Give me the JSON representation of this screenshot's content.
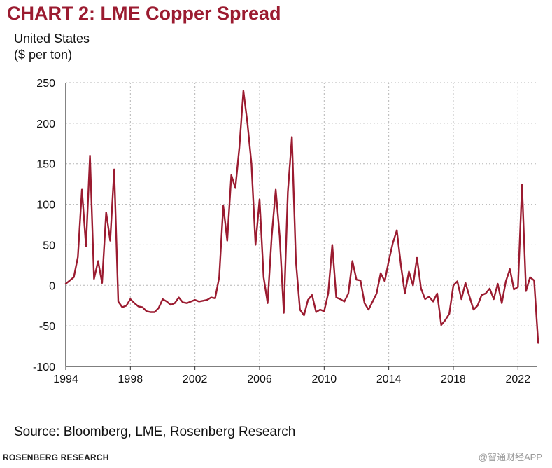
{
  "title": "CHART 2: LME Copper Spread",
  "subtitle_line1": "United States",
  "subtitle_line2": "($ per ton)",
  "source": "Source: Bloomberg, LME, Rosenberg Research",
  "footer": "ROSENBERG RESEARCH",
  "watermark": "@智通财经APP",
  "line_color": "#9b1b30",
  "chart_data": {
    "type": "line",
    "title": "CHART 2: LME Copper Spread",
    "xlabel": "",
    "ylabel": "($ per ton)",
    "xlim": [
      1994,
      2023.2
    ],
    "ylim": [
      -100,
      250
    ],
    "yticks": [
      250,
      200,
      150,
      100,
      50,
      0,
      -50,
      -100
    ],
    "xticks": [
      1994,
      1998,
      2002,
      2006,
      2010,
      2014,
      2018,
      2022
    ],
    "grid": true,
    "series": [
      {
        "name": "LME Copper Spread",
        "x": [
          1994.0,
          1994.25,
          1994.5,
          1994.75,
          1995.0,
          1995.25,
          1995.5,
          1995.75,
          1996.0,
          1996.25,
          1996.5,
          1996.75,
          1997.0,
          1997.25,
          1997.5,
          1997.75,
          1998.0,
          1998.25,
          1998.5,
          1998.75,
          1999.0,
          1999.25,
          1999.5,
          1999.75,
          2000.0,
          2000.25,
          2000.5,
          2000.75,
          2001.0,
          2001.25,
          2001.5,
          2001.75,
          2002.0,
          2002.25,
          2002.5,
          2002.75,
          2003.0,
          2003.25,
          2003.5,
          2003.75,
          2004.0,
          2004.25,
          2004.5,
          2004.75,
          2005.0,
          2005.25,
          2005.5,
          2005.75,
          2006.0,
          2006.25,
          2006.5,
          2006.75,
          2007.0,
          2007.25,
          2007.5,
          2007.75,
          2008.0,
          2008.25,
          2008.5,
          2008.75,
          2009.0,
          2009.25,
          2009.5,
          2009.75,
          2010.0,
          2010.25,
          2010.5,
          2010.75,
          2011.0,
          2011.25,
          2011.5,
          2011.75,
          2012.0,
          2012.25,
          2012.5,
          2012.75,
          2013.0,
          2013.25,
          2013.5,
          2013.75,
          2014.0,
          2014.25,
          2014.5,
          2014.75,
          2015.0,
          2015.25,
          2015.5,
          2015.75,
          2016.0,
          2016.25,
          2016.5,
          2016.75,
          2017.0,
          2017.25,
          2017.5,
          2017.75,
          2018.0,
          2018.25,
          2018.5,
          2018.75,
          2019.0,
          2019.25,
          2019.5,
          2019.75,
          2020.0,
          2020.25,
          2020.5,
          2020.75,
          2021.0,
          2021.25,
          2021.5,
          2021.75,
          2022.0,
          2022.25,
          2022.5,
          2022.75,
          2023.0,
          2023.25
        ],
        "values": [
          2,
          6,
          10,
          35,
          118,
          48,
          160,
          8,
          30,
          3,
          90,
          55,
          143,
          -20,
          -27,
          -25,
          -17,
          -22,
          -26,
          -27,
          -32,
          -33,
          -33,
          -28,
          -17,
          -20,
          -24,
          -22,
          -15,
          -21,
          -22,
          -20,
          -18,
          -20,
          -19,
          -18,
          -15,
          -16,
          10,
          98,
          55,
          136,
          120,
          170,
          240,
          200,
          150,
          50,
          106,
          10,
          -22,
          60,
          118,
          60,
          -34,
          115,
          183,
          30,
          -30,
          -37,
          -18,
          -12,
          -33,
          -30,
          -32,
          -10,
          50,
          -15,
          -17,
          -20,
          -10,
          30,
          7,
          6,
          -22,
          -30,
          -20,
          -10,
          15,
          5,
          30,
          52,
          68,
          25,
          -10,
          17,
          0,
          34,
          -4,
          -17,
          -14,
          -20,
          -10,
          -49,
          -43,
          -35,
          0,
          5,
          -17,
          3,
          -14,
          -30,
          -25,
          -12,
          -10,
          -4,
          -17,
          2,
          -22,
          5,
          20,
          -5,
          -2,
          124,
          -7,
          10,
          6,
          -71
        ]
      }
    ]
  }
}
